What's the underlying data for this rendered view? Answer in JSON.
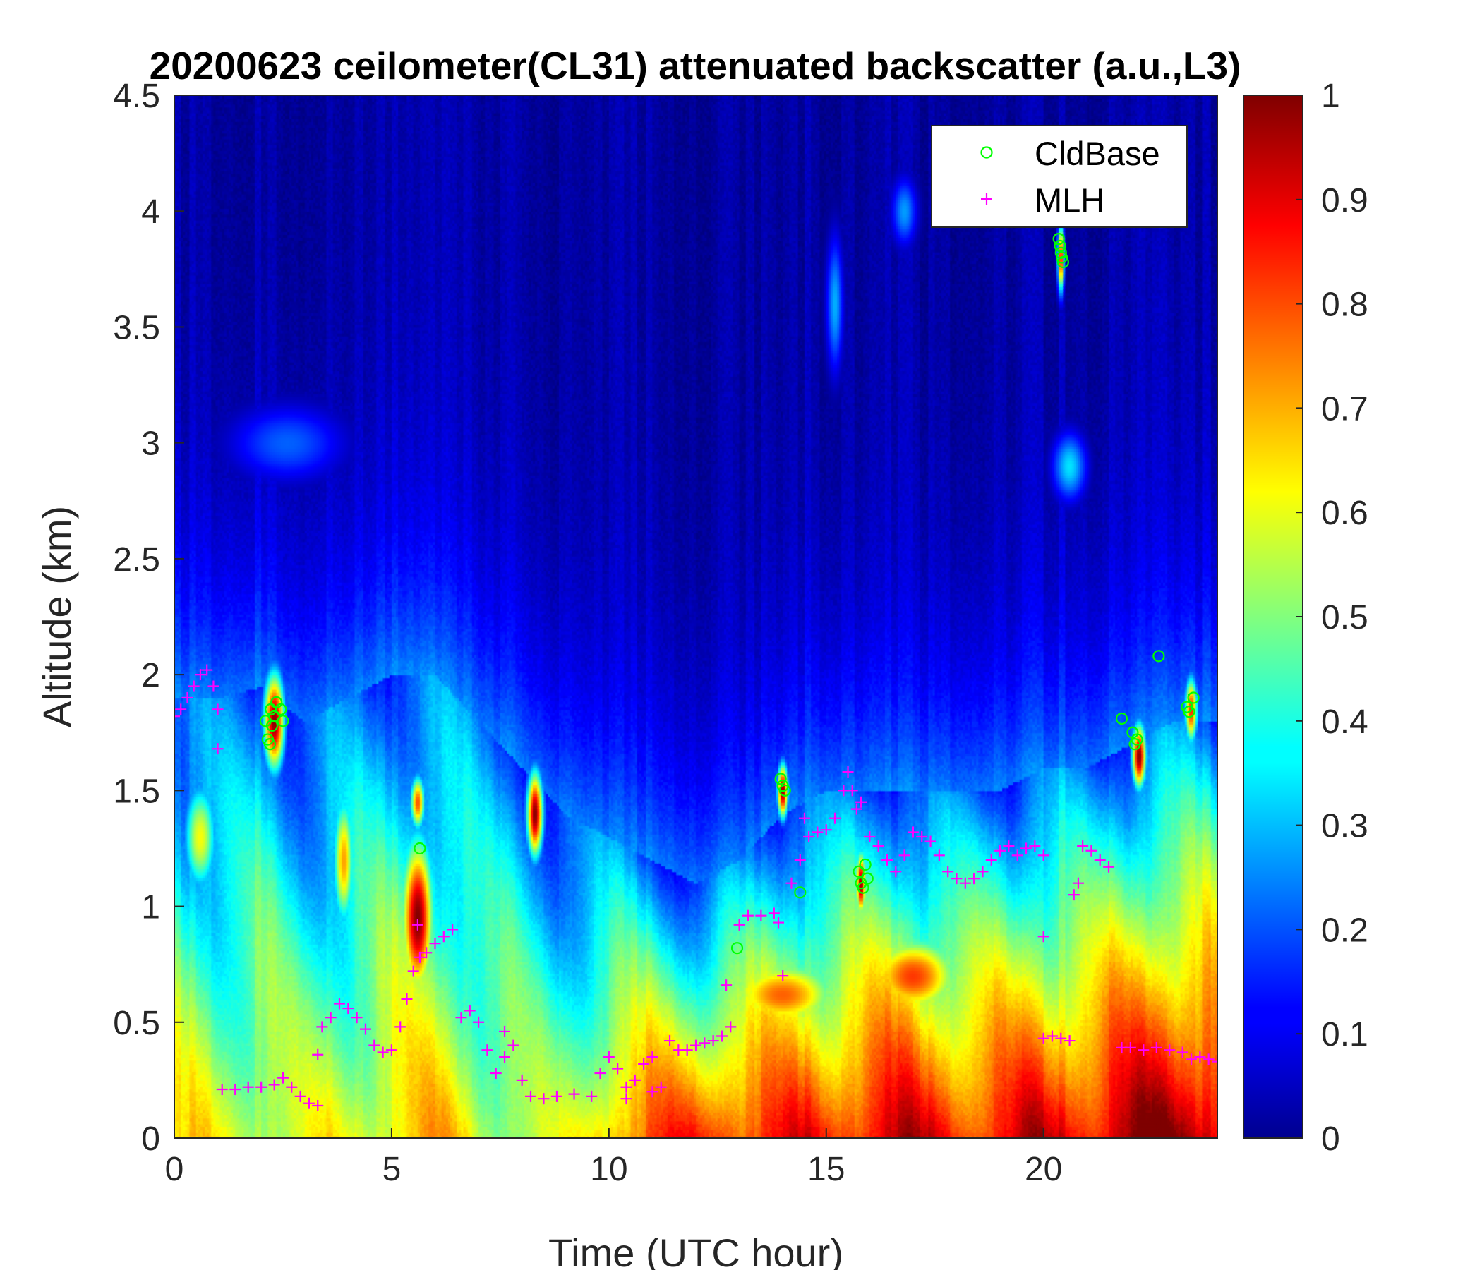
{
  "chart_data": {
    "type": "heatmap",
    "title": "20200623 ceilometer(CL31) attenuated backscatter (a.u.,L3)",
    "xlabel": "Time (UTC hour)",
    "ylabel": "Altitude (km)",
    "xlim": [
      0,
      24
    ],
    "ylim": [
      0,
      4.5
    ],
    "xticks": [
      "0",
      "5",
      "10",
      "15",
      "20"
    ],
    "xtick_values": [
      0,
      5,
      10,
      15,
      20
    ],
    "yticks": [
      "0",
      "0.5",
      "1",
      "1.5",
      "2",
      "2.5",
      "3",
      "3.5",
      "4",
      "4.5"
    ],
    "ytick_values": [
      0,
      0.5,
      1,
      1.5,
      2,
      2.5,
      3,
      3.5,
      4,
      4.5
    ],
    "colorbar": {
      "colormap": "jet",
      "clim": [
        0,
        1
      ],
      "ticks": [
        "0",
        "0.1",
        "0.2",
        "0.3",
        "0.4",
        "0.5",
        "0.6",
        "0.7",
        "0.8",
        "0.9",
        "1"
      ],
      "tick_values": [
        0,
        0.1,
        0.2,
        0.3,
        0.4,
        0.5,
        0.6,
        0.7,
        0.8,
        0.9,
        1
      ]
    },
    "legend": {
      "position": "top-right",
      "entries": [
        {
          "label": "CldBase",
          "marker": "circle",
          "color": "#00ff00"
        },
        {
          "label": "MLH",
          "marker": "plus",
          "color": "#ff00ff"
        }
      ]
    },
    "background_profile": {
      "description_levels": "backscatter value vs altitude at each hour",
      "hours": [
        0,
        1,
        2,
        3,
        4,
        5,
        6,
        7,
        8,
        9,
        10,
        11,
        12,
        13,
        14,
        15,
        16,
        17,
        18,
        19,
        20,
        21,
        22,
        23,
        24
      ],
      "surface_value": [
        0.62,
        0.6,
        0.62,
        0.58,
        0.6,
        0.66,
        0.66,
        0.6,
        0.56,
        0.55,
        0.72,
        0.8,
        0.84,
        0.85,
        0.84,
        0.86,
        0.9,
        0.9,
        0.88,
        0.87,
        0.9,
        0.92,
        0.95,
        0.98,
        0.98
      ],
      "aerosol_top_km": [
        1.9,
        1.9,
        1.95,
        1.8,
        1.9,
        2.0,
        2.0,
        1.8,
        1.6,
        1.4,
        1.3,
        1.2,
        1.1,
        1.2,
        1.4,
        1.5,
        1.5,
        1.5,
        1.5,
        1.5,
        1.6,
        1.6,
        1.7,
        1.8,
        1.8
      ]
    },
    "high_features": [
      {
        "x": 2.3,
        "y": 1.8,
        "w": 0.5,
        "h": 0.45,
        "v": 1.0
      },
      {
        "x": 5.6,
        "y": 0.95,
        "w": 0.8,
        "h": 0.75,
        "v": 1.0
      },
      {
        "x": 5.6,
        "y": 1.45,
        "w": 0.35,
        "h": 0.25,
        "v": 0.8
      },
      {
        "x": 8.3,
        "y": 1.4,
        "w": 0.4,
        "h": 0.4,
        "v": 1.0
      },
      {
        "x": 3.9,
        "y": 1.2,
        "w": 0.5,
        "h": 0.6,
        "v": 0.72
      },
      {
        "x": 0.6,
        "y": 1.3,
        "w": 0.8,
        "h": 0.5,
        "v": 0.62
      },
      {
        "x": 14.0,
        "y": 1.5,
        "w": 0.25,
        "h": 0.25,
        "v": 1.0
      },
      {
        "x": 15.8,
        "y": 1.1,
        "w": 0.25,
        "h": 0.3,
        "v": 1.0
      },
      {
        "x": 22.2,
        "y": 1.65,
        "w": 0.35,
        "h": 0.3,
        "v": 1.0
      },
      {
        "x": 23.4,
        "y": 1.85,
        "w": 0.3,
        "h": 0.3,
        "v": 0.85
      },
      {
        "x": 20.4,
        "y": 3.8,
        "w": 0.15,
        "h": 0.3,
        "v": 0.9
      },
      {
        "x": 2.6,
        "y": 3.0,
        "w": 2.8,
        "h": 0.35,
        "v": 0.22
      },
      {
        "x": 15.2,
        "y": 3.6,
        "w": 0.4,
        "h": 0.6,
        "v": 0.3
      },
      {
        "x": 20.6,
        "y": 2.9,
        "w": 0.8,
        "h": 0.3,
        "v": 0.35
      },
      {
        "x": 16.8,
        "y": 4.0,
        "w": 0.6,
        "h": 0.3,
        "v": 0.28
      },
      {
        "x": 14.0,
        "y": 0.62,
        "w": 3.0,
        "h": 0.35,
        "v": 0.78
      },
      {
        "x": 17.0,
        "y": 0.7,
        "w": 2.5,
        "h": 0.4,
        "v": 0.82
      }
    ],
    "series": [
      {
        "name": "CldBase",
        "marker": "circle",
        "color": "#00ff00",
        "points": [
          [
            2.1,
            1.8
          ],
          [
            2.15,
            1.72
          ],
          [
            2.2,
            1.7
          ],
          [
            2.22,
            1.85
          ],
          [
            2.25,
            1.78
          ],
          [
            2.3,
            1.82
          ],
          [
            2.35,
            1.88
          ],
          [
            2.45,
            1.85
          ],
          [
            2.5,
            1.8
          ],
          [
            5.65,
            1.25
          ],
          [
            12.95,
            0.82
          ],
          [
            13.95,
            1.55
          ],
          [
            14.0,
            1.52
          ],
          [
            14.05,
            1.5
          ],
          [
            14.4,
            1.06
          ],
          [
            15.75,
            1.15
          ],
          [
            15.8,
            1.1
          ],
          [
            15.85,
            1.08
          ],
          [
            15.9,
            1.18
          ],
          [
            15.95,
            1.12
          ],
          [
            20.35,
            3.88
          ],
          [
            20.38,
            3.85
          ],
          [
            20.4,
            3.82
          ],
          [
            20.42,
            3.8
          ],
          [
            20.45,
            3.78
          ],
          [
            21.8,
            1.81
          ],
          [
            22.05,
            1.75
          ],
          [
            22.1,
            1.7
          ],
          [
            22.15,
            1.72
          ],
          [
            22.65,
            2.08
          ],
          [
            23.3,
            1.86
          ],
          [
            23.35,
            1.84
          ],
          [
            23.45,
            1.9
          ]
        ]
      },
      {
        "name": "MLH",
        "marker": "plus",
        "color": "#ff00ff",
        "points": [
          [
            0.0,
            1.82
          ],
          [
            0.15,
            1.85
          ],
          [
            0.3,
            1.9
          ],
          [
            0.45,
            1.95
          ],
          [
            0.6,
            2.0
          ],
          [
            0.75,
            2.02
          ],
          [
            0.9,
            1.95
          ],
          [
            1.0,
            1.85
          ],
          [
            1.0,
            1.68
          ],
          [
            1.1,
            0.21
          ],
          [
            1.4,
            0.21
          ],
          [
            1.7,
            0.22
          ],
          [
            2.0,
            0.22
          ],
          [
            2.3,
            0.23
          ],
          [
            2.5,
            0.26
          ],
          [
            2.7,
            0.22
          ],
          [
            2.9,
            0.18
          ],
          [
            3.1,
            0.15
          ],
          [
            3.3,
            0.14
          ],
          [
            3.3,
            0.36
          ],
          [
            3.4,
            0.48
          ],
          [
            3.6,
            0.52
          ],
          [
            3.8,
            0.58
          ],
          [
            4.0,
            0.56
          ],
          [
            4.2,
            0.52
          ],
          [
            4.4,
            0.47
          ],
          [
            4.6,
            0.4
          ],
          [
            4.8,
            0.37
          ],
          [
            5.0,
            0.38
          ],
          [
            5.2,
            0.48
          ],
          [
            5.35,
            0.6
          ],
          [
            5.5,
            0.72
          ],
          [
            5.65,
            0.78
          ],
          [
            5.8,
            0.8
          ],
          [
            6.0,
            0.84
          ],
          [
            6.2,
            0.87
          ],
          [
            6.4,
            0.9
          ],
          [
            5.6,
            0.92
          ],
          [
            6.6,
            0.52
          ],
          [
            6.8,
            0.55
          ],
          [
            7.0,
            0.5
          ],
          [
            7.2,
            0.38
          ],
          [
            7.4,
            0.28
          ],
          [
            7.6,
            0.35
          ],
          [
            7.8,
            0.4
          ],
          [
            8.0,
            0.25
          ],
          [
            8.2,
            0.18
          ],
          [
            8.5,
            0.17
          ],
          [
            8.8,
            0.18
          ],
          [
            9.2,
            0.19
          ],
          [
            9.6,
            0.18
          ],
          [
            7.6,
            0.46
          ],
          [
            9.8,
            0.28
          ],
          [
            10.0,
            0.35
          ],
          [
            10.2,
            0.3
          ],
          [
            10.4,
            0.22
          ],
          [
            10.6,
            0.25
          ],
          [
            10.8,
            0.32
          ],
          [
            11.0,
            0.35
          ],
          [
            10.4,
            0.17
          ],
          [
            11.0,
            0.2
          ],
          [
            11.2,
            0.22
          ],
          [
            11.4,
            0.42
          ],
          [
            11.6,
            0.38
          ],
          [
            11.8,
            0.38
          ],
          [
            12.0,
            0.4
          ],
          [
            12.2,
            0.41
          ],
          [
            12.4,
            0.42
          ],
          [
            12.6,
            0.44
          ],
          [
            12.8,
            0.48
          ],
          [
            12.7,
            0.66
          ],
          [
            13.0,
            0.92
          ],
          [
            13.2,
            0.96
          ],
          [
            13.5,
            0.96
          ],
          [
            13.8,
            0.97
          ],
          [
            13.9,
            0.93
          ],
          [
            14.0,
            0.7
          ],
          [
            14.2,
            1.1
          ],
          [
            14.4,
            1.2
          ],
          [
            14.6,
            1.3
          ],
          [
            14.8,
            1.32
          ],
          [
            15.0,
            1.33
          ],
          [
            15.2,
            1.38
          ],
          [
            15.4,
            1.5
          ],
          [
            15.5,
            1.58
          ],
          [
            15.6,
            1.5
          ],
          [
            15.7,
            1.42
          ],
          [
            14.5,
            1.38
          ],
          [
            15.8,
            1.45
          ],
          [
            16.0,
            1.3
          ],
          [
            16.2,
            1.26
          ],
          [
            16.4,
            1.2
          ],
          [
            16.6,
            1.15
          ],
          [
            16.8,
            1.22
          ],
          [
            17.0,
            1.32
          ],
          [
            17.2,
            1.3
          ],
          [
            17.4,
            1.28
          ],
          [
            17.6,
            1.22
          ],
          [
            17.8,
            1.15
          ],
          [
            18.0,
            1.12
          ],
          [
            18.2,
            1.1
          ],
          [
            18.4,
            1.12
          ],
          [
            18.6,
            1.15
          ],
          [
            18.8,
            1.2
          ],
          [
            19.0,
            1.24
          ],
          [
            19.2,
            1.26
          ],
          [
            19.4,
            1.22
          ],
          [
            19.6,
            1.25
          ],
          [
            19.8,
            1.26
          ],
          [
            20.0,
            1.22
          ],
          [
            20.0,
            0.87
          ],
          [
            20.0,
            0.43
          ],
          [
            20.2,
            0.44
          ],
          [
            20.4,
            0.43
          ],
          [
            20.6,
            0.42
          ],
          [
            20.7,
            1.05
          ],
          [
            20.8,
            1.1
          ],
          [
            20.9,
            1.26
          ],
          [
            21.1,
            1.24
          ],
          [
            21.3,
            1.2
          ],
          [
            21.5,
            1.17
          ],
          [
            21.8,
            0.39
          ],
          [
            22.0,
            0.39
          ],
          [
            22.3,
            0.38
          ],
          [
            22.6,
            0.39
          ],
          [
            22.9,
            0.38
          ],
          [
            23.2,
            0.37
          ],
          [
            23.4,
            0.34
          ],
          [
            23.6,
            0.35
          ],
          [
            23.8,
            0.34
          ],
          [
            24.0,
            0.33
          ]
        ]
      }
    ]
  }
}
